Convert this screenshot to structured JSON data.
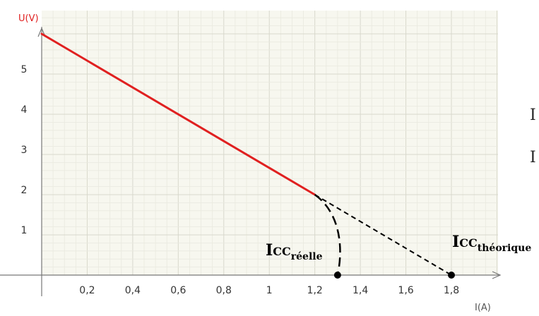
{
  "chart_data": {
    "type": "line",
    "xlabel": "I(A)",
    "ylabel": "U(V)",
    "xlim": [
      0,
      1.9
    ],
    "ylim": [
      0,
      6
    ],
    "x_ticks": [
      {
        "value": 0.2,
        "label": "0,2"
      },
      {
        "value": 0.4,
        "label": "0,4"
      },
      {
        "value": 0.6,
        "label": "0,6"
      },
      {
        "value": 0.8,
        "label": "0,8"
      },
      {
        "value": 1.0,
        "label": "1"
      },
      {
        "value": 1.2,
        "label": "1,2"
      },
      {
        "value": 1.4,
        "label": "1,4"
      },
      {
        "value": 1.6,
        "label": "1,6"
      },
      {
        "value": 1.8,
        "label": "1,8"
      }
    ],
    "y_ticks": [
      {
        "value": 1,
        "label": "1"
      },
      {
        "value": 2,
        "label": "2"
      },
      {
        "value": 3,
        "label": "3"
      },
      {
        "value": 4,
        "label": "4"
      },
      {
        "value": 5,
        "label": "5"
      }
    ],
    "grid": true,
    "series": [
      {
        "style": "solid",
        "color": "#e02020",
        "points": [
          [
            0,
            6
          ],
          [
            1.2,
            2
          ]
        ]
      },
      {
        "style": "dashed",
        "color": "#000000",
        "points": [
          [
            1.2,
            2
          ],
          [
            1.8,
            0
          ]
        ]
      },
      {
        "style": "dashed-curve",
        "color": "#000000",
        "points": [
          [
            1.2,
            2
          ],
          [
            1.3,
            1.6
          ],
          [
            1.33,
            0.8
          ],
          [
            1.3,
            0
          ]
        ]
      }
    ],
    "markers": [
      {
        "x": 1.3,
        "y": 0
      },
      {
        "x": 1.8,
        "y": 0
      }
    ],
    "annotations": [
      {
        "main": "I",
        "sub": "CC",
        "sub2": "réelle"
      },
      {
        "main": "I",
        "sub": "CC",
        "sub2": "théorique"
      }
    ],
    "edge_glyphs": [
      "I",
      "I"
    ],
    "colors": {
      "plot_bg": "#f7f7ef",
      "grid_major": "#d8d8cc",
      "grid_minor": "#e9e9df",
      "axis": "#777777",
      "ylabel": "#e02020",
      "xlabel": "#555555"
    }
  }
}
